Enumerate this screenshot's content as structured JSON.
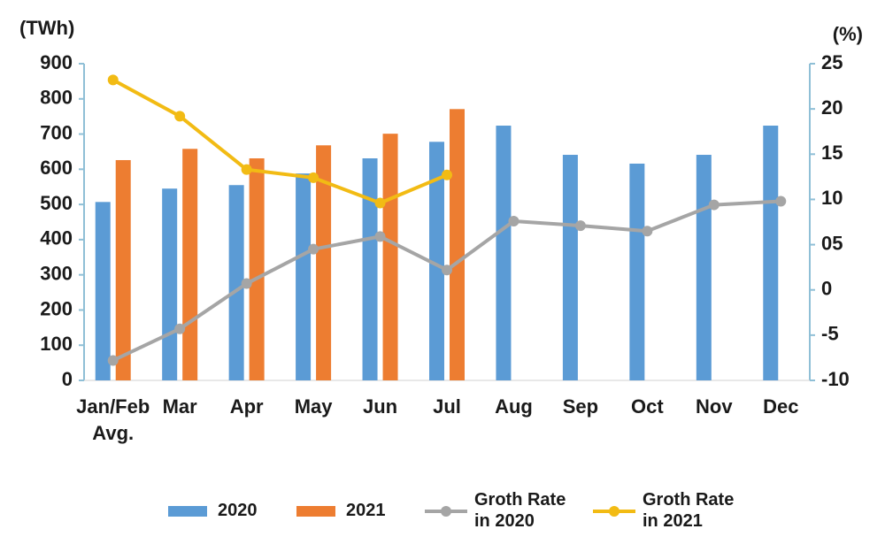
{
  "chart_data": {
    "type": "bar-line",
    "y_label": "(TWh)",
    "y2_label": "(%)",
    "categories": [
      "Jan/Feb Avg.",
      "Mar",
      "Apr",
      "May",
      "Jun",
      "Jul",
      "Aug",
      "Sep",
      "Oct",
      "Nov",
      "Dec"
    ],
    "series": [
      {
        "name": "2020",
        "type": "bar",
        "color": "#5b9bd5",
        "values": [
          507,
          545,
          555,
          588,
          631,
          678,
          724,
          641,
          616,
          641,
          724
        ]
      },
      {
        "name": "2021",
        "type": "bar",
        "color": "#ed7d31",
        "values": [
          626,
          658,
          631,
          668,
          701,
          771,
          null,
          null,
          null,
          null,
          null
        ]
      },
      {
        "name": "Groth Rate in 2020",
        "type": "line",
        "axis": "y2",
        "color": "#a5a5a5",
        "values": [
          -7.8,
          -4.3,
          0.7,
          4.5,
          5.9,
          2.2,
          7.6,
          7.1,
          6.5,
          9.4,
          9.8
        ]
      },
      {
        "name": "Groth Rate in 2021",
        "type": "line",
        "axis": "y2",
        "color": "#f2bb14",
        "values": [
          23.2,
          19.2,
          13.3,
          12.4,
          9.6,
          12.7,
          null,
          null,
          null,
          null,
          null
        ]
      }
    ],
    "ylim": [
      0,
      900
    ],
    "yticks": [
      0,
      100,
      200,
      300,
      400,
      500,
      600,
      700,
      800,
      900
    ],
    "y2lim": [
      -10,
      25
    ],
    "y2ticks": [
      -10,
      -5,
      0,
      {
        "value": 5,
        "label": "05"
      },
      10,
      15,
      20,
      25
    ],
    "grid": false,
    "legend": "bottom"
  }
}
